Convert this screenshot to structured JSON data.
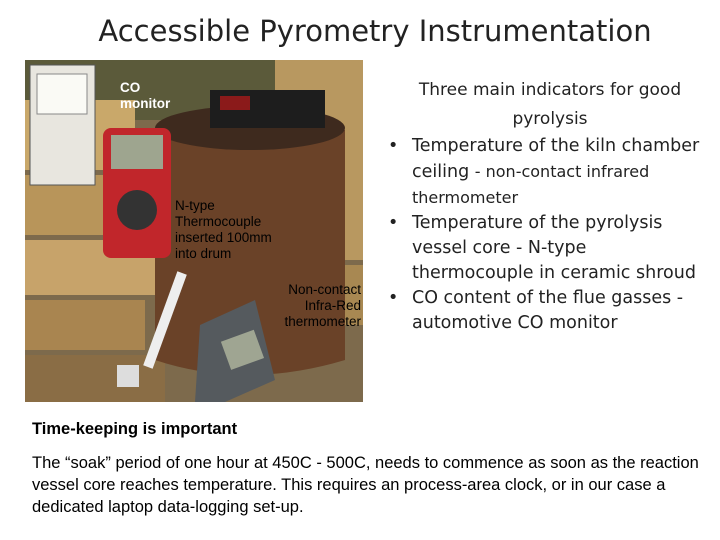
{
  "title": "Accessible Pyrometry Instrumentation",
  "photo": {
    "labels": [
      "CO monitor",
      "N-type Thermocouple inserted 100mm into drum",
      "Non-contact Infra-Red thermometer"
    ]
  },
  "indicators": {
    "heading": "Three main indicators for good pyrolysis",
    "bullets": [
      {
        "text": "Temperature of the kiln chamber ceiling",
        "detail": "- non-contact infrared thermometer"
      },
      {
        "text": "Temperature of the pyrolysis vessel core - N-type thermocouple in ceramic shroud"
      },
      {
        "text": "CO content of the flue gasses - automotive CO monitor"
      }
    ]
  },
  "note": {
    "heading": "Time-keeping is important",
    "text": "The “soak” period of one hour at 450C - 500C, needs to commence as soon as the reaction vessel core reaches temperature.  This requires an process-area clock, or in our case a dedicated laptop data-logging set-up."
  }
}
